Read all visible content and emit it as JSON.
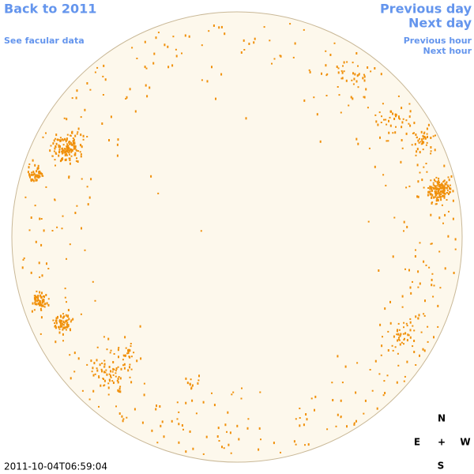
{
  "nav": {
    "back": "Back to 2011",
    "facular": "See facular data",
    "previous_day": "Previous day",
    "next_day": "Next day",
    "previous_hour": "Previous hour",
    "next_hour": "Next hour"
  },
  "timestamp": "2011-10-04T06:59:04",
  "compass": {
    "n": "N",
    "e": "E",
    "center": "+",
    "w": "W",
    "s": "S"
  }
}
